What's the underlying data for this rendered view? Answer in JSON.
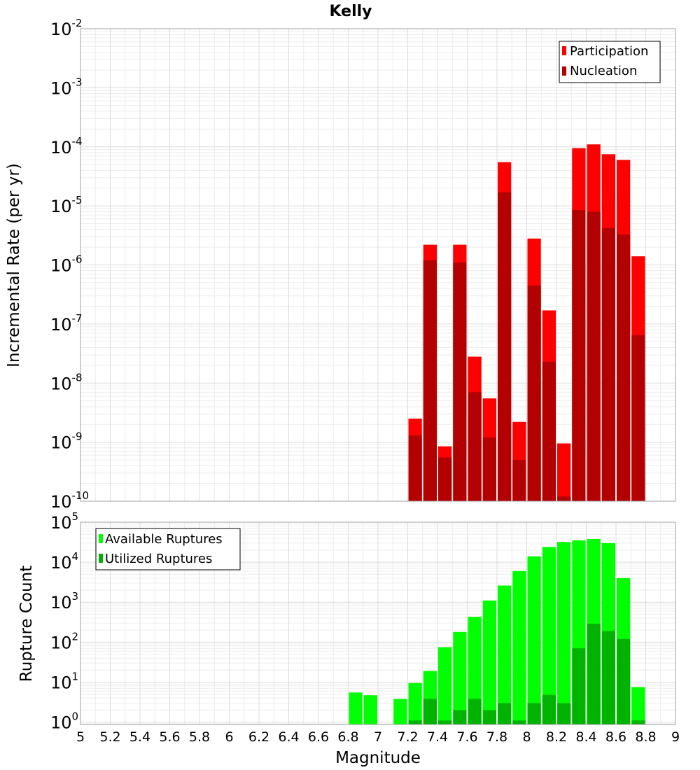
{
  "colors": {
    "participation": "#ff0000",
    "nucleation": "#b30000",
    "available": "#00ff00",
    "utilized": "#00b300"
  },
  "chart_data": [
    {
      "id": "top",
      "type": "bar",
      "title": "Kelly",
      "xlabel": "",
      "ylabel": "Incremental Rate (per yr)",
      "yscale": "log",
      "xlim": [
        5,
        9
      ],
      "ylim_exponents": [
        -10,
        -2
      ],
      "ytick_base": "10",
      "ytick_exponents": [
        "-10",
        "-9",
        "-8",
        "-7",
        "-6",
        "-5",
        "-4",
        "-3",
        "-2"
      ],
      "legend_position": "top-right",
      "legend": [
        "Participation",
        "Nucleation"
      ],
      "x": [
        7.25,
        7.35,
        7.45,
        7.55,
        7.65,
        7.75,
        7.85,
        7.95,
        8.05,
        8.15,
        8.25,
        8.35,
        8.45,
        8.55,
        8.65,
        8.75
      ],
      "series": [
        {
          "name": "Participation",
          "values": [
            2.5e-09,
            2.2e-06,
            8.5e-10,
            2.2e-06,
            2.8e-08,
            5.5e-09,
            5.5e-05,
            2.2e-09,
            2.8e-06,
            1.7e-07,
            9.5e-10,
            9.5e-05,
            0.00011,
            7.5e-05,
            6e-05,
            1.4e-06
          ]
        },
        {
          "name": "Nucleation",
          "values": [
            1.3e-09,
            1.2e-06,
            5.5e-10,
            1.1e-06,
            7e-09,
            1.2e-09,
            1.7e-05,
            5e-10,
            4.5e-07,
            2.3e-08,
            1.2e-10,
            8.5e-06,
            8e-06,
            4.2e-06,
            3.3e-06,
            6.5e-08
          ]
        }
      ]
    },
    {
      "id": "bottom",
      "type": "bar",
      "title": "",
      "xlabel": "Magnitude",
      "ylabel": "Rupture Count",
      "yscale": "log",
      "xlim": [
        5,
        9
      ],
      "ylim_exponents": [
        -0.06,
        5
      ],
      "ytick_base": "10",
      "ytick_exponents": [
        "0",
        "1",
        "2",
        "3",
        "4",
        "5"
      ],
      "xticks": [
        "5",
        "5.2",
        "5.4",
        "5.6",
        "5.8",
        "6",
        "6.2",
        "6.4",
        "6.6",
        "6.8",
        "7",
        "7.2",
        "7.4",
        "7.6",
        "7.8",
        "8",
        "8.2",
        "8.4",
        "8.6",
        "8.8",
        "9"
      ],
      "legend_position": "top-left",
      "legend": [
        "Available Ruptures",
        "Utilized Ruptures"
      ],
      "x": [
        6.85,
        6.95,
        7.05,
        7.15,
        7.25,
        7.35,
        7.45,
        7.55,
        7.65,
        7.75,
        7.85,
        7.95,
        8.05,
        8.15,
        8.25,
        8.35,
        8.45,
        8.55,
        8.65,
        8.75
      ],
      "series": [
        {
          "name": "Available Ruptures",
          "values": [
            5.5,
            4.7,
            0,
            3.8,
            9.5,
            19,
            75,
            180,
            430,
            1100,
            2600,
            6000,
            14000,
            24000,
            32000,
            35000,
            38000,
            30000,
            4000,
            7.5
          ]
        },
        {
          "name": "Utilized Ruptures",
          "values": [
            0,
            0,
            0,
            0,
            1.1,
            3.8,
            1.1,
            2.0,
            3.8,
            2.0,
            3.0,
            1.1,
            3.0,
            4.8,
            3.0,
            70,
            290,
            190,
            120,
            1.1
          ]
        }
      ]
    }
  ]
}
